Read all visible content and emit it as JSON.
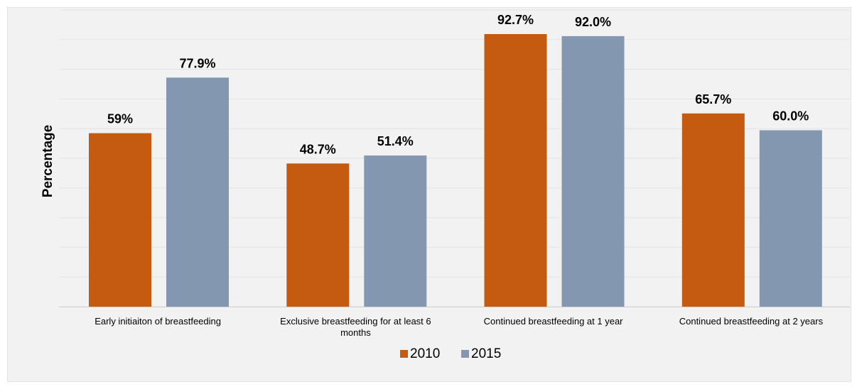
{
  "chart_data": {
    "type": "bar",
    "ylabel": "Percentage",
    "xlabel": "",
    "ylim": [
      0,
      92.7
    ],
    "grid": true,
    "legend_position": "bottom",
    "categories": [
      [
        "Early initiaiton of breastfeeding"
      ],
      [
        "Exclusive breastfeeding for at least 6",
        "months"
      ],
      [
        "Continued breastfeeding at 1 year"
      ],
      [
        "Continued breastfeeding at 2 years"
      ]
    ],
    "series": [
      {
        "name": "2010",
        "color": "#c55a11",
        "values": [
          59,
          48.7,
          92.7,
          65.7
        ],
        "labels": [
          "59%",
          "48.7%",
          "92.7%",
          "65.7%"
        ]
      },
      {
        "name": "2015",
        "color": "#8497b0",
        "values": [
          77.9,
          51.4,
          92.0,
          60.0
        ],
        "labels": [
          "77.9%",
          "51.4%",
          "92.0%",
          "60.0%"
        ]
      }
    ]
  }
}
